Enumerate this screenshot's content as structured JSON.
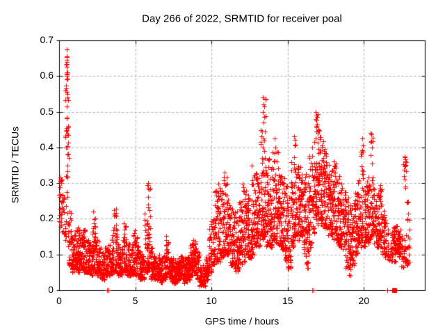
{
  "chart_data": {
    "type": "scatter",
    "title": "Day 266 of 2022, SRMTID for receiver poal",
    "xlabel": "GPS time / hours",
    "ylabel": "SRMTID / TECUs",
    "xlim": [
      0,
      24
    ],
    "ylim": [
      0,
      0.7
    ],
    "xticks": [
      {
        "v": 0,
        "label": "0"
      },
      {
        "v": 5,
        "label": "5"
      },
      {
        "v": 10,
        "label": "10"
      },
      {
        "v": 15,
        "label": "15"
      },
      {
        "v": 20,
        "label": "20"
      }
    ],
    "yticks": [
      {
        "v": 0.0,
        "label": "0"
      },
      {
        "v": 0.1,
        "label": "0.1"
      },
      {
        "v": 0.2,
        "label": "0.2"
      },
      {
        "v": 0.3,
        "label": "0.3"
      },
      {
        "v": 0.4,
        "label": "0.4"
      },
      {
        "v": 0.5,
        "label": "0.5"
      },
      {
        "v": 0.6,
        "label": "0.6"
      },
      {
        "v": 0.7,
        "label": "0.7"
      }
    ],
    "grid": true,
    "legend": "none",
    "marker": "plus",
    "marker_color": "#ff0000",
    "grid_color": "#a8a8a8",
    "border_color": "#000000",
    "background": "#ffffff",
    "text_color": "#000000",
    "render_seed": 20220266,
    "density_bins": {
      "bin_width_hours": 0.2,
      "columns": [
        "x_start_hour",
        "count",
        "y_min_tecu",
        "y_max_tecu",
        "skew_toward_min"
      ],
      "rows": [
        [
          0.0,
          24,
          0.17,
          0.32,
          1.2
        ],
        [
          0.2,
          16,
          0.15,
          0.27,
          1.2
        ],
        [
          0.4,
          44,
          0.14,
          0.68,
          1.15
        ],
        [
          0.6,
          30,
          0.07,
          0.22,
          1.5
        ],
        [
          0.8,
          34,
          0.05,
          0.16,
          1.4
        ],
        [
          1.0,
          38,
          0.06,
          0.17,
          1.4
        ],
        [
          1.2,
          38,
          0.05,
          0.19,
          1.5
        ],
        [
          1.4,
          38,
          0.06,
          0.16,
          1.4
        ],
        [
          1.6,
          36,
          0.05,
          0.17,
          1.5
        ],
        [
          1.8,
          34,
          0.05,
          0.14,
          1.3
        ],
        [
          2.0,
          34,
          0.04,
          0.13,
          1.3
        ],
        [
          2.2,
          38,
          0.05,
          0.22,
          1.7
        ],
        [
          2.4,
          34,
          0.04,
          0.14,
          1.4
        ],
        [
          2.6,
          34,
          0.04,
          0.12,
          1.3
        ],
        [
          2.8,
          32,
          0.03,
          0.11,
          1.3
        ],
        [
          3.0,
          32,
          0.04,
          0.12,
          1.3
        ],
        [
          3.2,
          32,
          0.04,
          0.13,
          1.4
        ],
        [
          3.4,
          34,
          0.05,
          0.18,
          1.6
        ],
        [
          3.6,
          36,
          0.05,
          0.24,
          1.8
        ],
        [
          3.8,
          32,
          0.04,
          0.13,
          1.4
        ],
        [
          4.0,
          32,
          0.04,
          0.12,
          1.3
        ],
        [
          4.2,
          36,
          0.05,
          0.2,
          1.7
        ],
        [
          4.4,
          32,
          0.04,
          0.14,
          1.4
        ],
        [
          4.6,
          32,
          0.04,
          0.13,
          1.4
        ],
        [
          4.8,
          34,
          0.04,
          0.17,
          1.6
        ],
        [
          5.0,
          34,
          0.04,
          0.15,
          1.5
        ],
        [
          5.2,
          32,
          0.03,
          0.11,
          1.3
        ],
        [
          5.4,
          32,
          0.03,
          0.1,
          1.3
        ],
        [
          5.6,
          34,
          0.05,
          0.22,
          1.6
        ],
        [
          5.8,
          36,
          0.06,
          0.3,
          1.8
        ],
        [
          6.0,
          34,
          0.03,
          0.12,
          1.4
        ],
        [
          6.2,
          34,
          0.03,
          0.1,
          1.3
        ],
        [
          6.4,
          34,
          0.03,
          0.1,
          1.3
        ],
        [
          6.6,
          34,
          0.02,
          0.09,
          1.2
        ],
        [
          6.8,
          34,
          0.03,
          0.1,
          1.3
        ],
        [
          7.0,
          36,
          0.04,
          0.17,
          1.6
        ],
        [
          7.2,
          34,
          0.03,
          0.1,
          1.3
        ],
        [
          7.4,
          34,
          0.02,
          0.09,
          1.2
        ],
        [
          7.6,
          34,
          0.02,
          0.08,
          1.2
        ],
        [
          7.8,
          34,
          0.03,
          0.09,
          1.2
        ],
        [
          8.0,
          34,
          0.03,
          0.1,
          1.3
        ],
        [
          8.2,
          34,
          0.02,
          0.09,
          1.2
        ],
        [
          8.4,
          34,
          0.03,
          0.1,
          1.2
        ],
        [
          8.6,
          36,
          0.04,
          0.13,
          1.4
        ],
        [
          8.8,
          36,
          0.05,
          0.14,
          1.4
        ],
        [
          9.0,
          34,
          0.03,
          0.11,
          1.3
        ],
        [
          9.2,
          32,
          0.01,
          0.07,
          1.2
        ],
        [
          9.4,
          32,
          0.01,
          0.07,
          1.2
        ],
        [
          9.6,
          32,
          0.03,
          0.1,
          1.3
        ],
        [
          9.8,
          34,
          0.05,
          0.2,
          1.6
        ],
        [
          10.0,
          34,
          0.07,
          0.2,
          1.5
        ],
        [
          10.2,
          34,
          0.08,
          0.28,
          1.6
        ],
        [
          10.4,
          34,
          0.08,
          0.3,
          1.6
        ],
        [
          10.6,
          36,
          0.09,
          0.28,
          1.6
        ],
        [
          10.8,
          36,
          0.1,
          0.33,
          1.7
        ],
        [
          11.0,
          36,
          0.1,
          0.3,
          1.6
        ],
        [
          11.2,
          34,
          0.07,
          0.24,
          1.5
        ],
        [
          11.4,
          34,
          0.06,
          0.22,
          1.4
        ],
        [
          11.6,
          34,
          0.05,
          0.22,
          1.4
        ],
        [
          11.8,
          36,
          0.06,
          0.25,
          1.5
        ],
        [
          12.0,
          36,
          0.08,
          0.3,
          1.6
        ],
        [
          12.2,
          34,
          0.1,
          0.28,
          1.5
        ],
        [
          12.4,
          34,
          0.09,
          0.26,
          1.4
        ],
        [
          12.6,
          36,
          0.1,
          0.32,
          1.5
        ],
        [
          12.8,
          36,
          0.12,
          0.33,
          1.4
        ],
        [
          13.0,
          36,
          0.12,
          0.32,
          1.4
        ],
        [
          13.2,
          38,
          0.14,
          0.45,
          1.7
        ],
        [
          13.4,
          40,
          0.15,
          0.54,
          1.7
        ],
        [
          13.6,
          36,
          0.12,
          0.38,
          1.5
        ],
        [
          13.8,
          36,
          0.12,
          0.35,
          1.4
        ],
        [
          14.0,
          36,
          0.14,
          0.42,
          1.6
        ],
        [
          14.2,
          36,
          0.13,
          0.4,
          1.5
        ],
        [
          14.4,
          36,
          0.12,
          0.33,
          1.4
        ],
        [
          14.6,
          36,
          0.11,
          0.32,
          1.4
        ],
        [
          14.8,
          36,
          0.08,
          0.3,
          1.4
        ],
        [
          15.0,
          36,
          0.06,
          0.28,
          1.4
        ],
        [
          15.2,
          36,
          0.12,
          0.36,
          1.5
        ],
        [
          15.4,
          38,
          0.15,
          0.43,
          1.5
        ],
        [
          15.6,
          36,
          0.14,
          0.35,
          1.3
        ],
        [
          15.8,
          36,
          0.15,
          0.36,
          1.3
        ],
        [
          16.0,
          36,
          0.1,
          0.34,
          1.4
        ],
        [
          16.2,
          36,
          0.06,
          0.32,
          1.4
        ],
        [
          16.4,
          38,
          0.12,
          0.38,
          1.4
        ],
        [
          16.6,
          38,
          0.16,
          0.42,
          1.3
        ],
        [
          16.8,
          42,
          0.18,
          0.5,
          1.2
        ],
        [
          17.0,
          40,
          0.2,
          0.46,
          1.2
        ],
        [
          17.2,
          38,
          0.18,
          0.42,
          1.2
        ],
        [
          17.4,
          38,
          0.16,
          0.4,
          1.3
        ],
        [
          17.6,
          36,
          0.15,
          0.36,
          1.3
        ],
        [
          17.8,
          36,
          0.14,
          0.34,
          1.3
        ],
        [
          18.0,
          36,
          0.13,
          0.37,
          1.4
        ],
        [
          18.2,
          36,
          0.12,
          0.33,
          1.4
        ],
        [
          18.4,
          36,
          0.12,
          0.3,
          1.4
        ],
        [
          18.6,
          36,
          0.11,
          0.28,
          1.4
        ],
        [
          18.8,
          36,
          0.06,
          0.26,
          1.4
        ],
        [
          19.0,
          34,
          0.04,
          0.24,
          1.4
        ],
        [
          19.2,
          34,
          0.07,
          0.25,
          1.4
        ],
        [
          19.4,
          34,
          0.1,
          0.28,
          1.4
        ],
        [
          19.6,
          34,
          0.12,
          0.32,
          1.5
        ],
        [
          19.8,
          36,
          0.14,
          0.42,
          1.6
        ],
        [
          20.0,
          34,
          0.12,
          0.3,
          1.4
        ],
        [
          20.2,
          34,
          0.13,
          0.32,
          1.5
        ],
        [
          20.4,
          36,
          0.15,
          0.44,
          1.6
        ],
        [
          20.6,
          34,
          0.13,
          0.3,
          1.4
        ],
        [
          20.8,
          34,
          0.12,
          0.28,
          1.4
        ],
        [
          21.0,
          34,
          0.12,
          0.3,
          1.4
        ],
        [
          21.2,
          32,
          0.1,
          0.26,
          1.4
        ],
        [
          21.4,
          18,
          0.09,
          0.2,
          1.3
        ],
        [
          21.6,
          8,
          0.08,
          0.16,
          1.2
        ],
        [
          21.8,
          26,
          0.08,
          0.18,
          1.3
        ],
        [
          22.0,
          38,
          0.08,
          0.18,
          1.3
        ],
        [
          22.2,
          34,
          0.09,
          0.17,
          1.2
        ],
        [
          22.4,
          16,
          0.06,
          0.15,
          1.2
        ],
        [
          22.6,
          28,
          0.08,
          0.38,
          1.6
        ],
        [
          22.8,
          22,
          0.07,
          0.3,
          1.4
        ]
      ]
    },
    "outliers": [
      [
        0.5,
        0.675
      ],
      [
        0.52,
        0.655
      ],
      [
        0.49,
        0.645
      ],
      [
        0.51,
        0.64
      ],
      [
        0.5,
        0.625
      ],
      [
        0.48,
        0.61
      ],
      [
        0.52,
        0.6
      ],
      [
        0.5,
        0.59
      ],
      [
        0.47,
        0.565
      ],
      [
        0.5,
        0.555
      ],
      [
        0.53,
        0.55
      ],
      [
        0.5,
        0.515
      ],
      [
        0.6,
        0.46
      ],
      [
        0.58,
        0.435
      ],
      [
        0.55,
        0.4
      ],
      [
        0.62,
        0.37
      ],
      [
        0.57,
        0.35
      ],
      [
        0.53,
        0.315
      ],
      [
        0.08,
        0.315
      ],
      [
        0.12,
        0.3
      ],
      [
        13.38,
        0.54
      ],
      [
        13.42,
        0.52
      ],
      [
        13.35,
        0.5
      ],
      [
        13.45,
        0.485
      ],
      [
        13.4,
        0.47
      ],
      [
        13.52,
        0.445
      ],
      [
        13.3,
        0.43
      ],
      [
        16.85,
        0.5
      ],
      [
        16.88,
        0.49
      ],
      [
        16.92,
        0.485
      ],
      [
        16.83,
        0.48
      ],
      [
        16.9,
        0.475
      ],
      [
        16.95,
        0.465
      ],
      [
        16.87,
        0.46
      ],
      [
        17.02,
        0.45
      ],
      [
        14.15,
        0.425
      ],
      [
        14.18,
        0.4
      ],
      [
        15.4,
        0.43
      ],
      [
        15.45,
        0.405
      ],
      [
        19.88,
        0.425
      ],
      [
        19.92,
        0.405
      ],
      [
        20.42,
        0.44
      ],
      [
        20.46,
        0.415
      ],
      [
        10.85,
        0.33
      ],
      [
        11.0,
        0.315
      ],
      [
        5.85,
        0.3
      ],
      [
        5.82,
        0.285
      ],
      [
        12.65,
        0.35
      ],
      [
        22.68,
        0.375
      ],
      [
        22.72,
        0.35
      ],
      [
        22.65,
        0.32
      ]
    ],
    "zero_points": [
      [
        3.15,
        0
      ],
      [
        3.22,
        0
      ],
      [
        16.6,
        0
      ],
      [
        16.7,
        0
      ],
      [
        21.55,
        0
      ]
    ],
    "zero_cluster_square": {
      "x": 22.0,
      "y": 0
    }
  }
}
